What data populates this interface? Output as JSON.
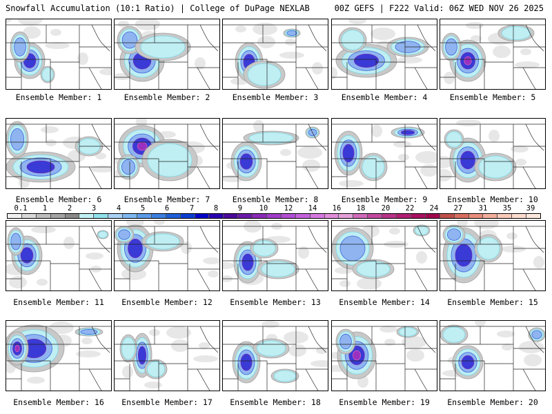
{
  "header": {
    "left": "Snowfall Accumulation (10:1 Ratio) | College of DuPage NEXLAB",
    "right": "00Z GEFS | F222 Valid: 06Z WED NOV 26 2025"
  },
  "panels": [
    {
      "label": "Ensemble Member: 1"
    },
    {
      "label": "Ensemble Member: 2"
    },
    {
      "label": "Ensemble Member: 3"
    },
    {
      "label": "Ensemble Member: 4"
    },
    {
      "label": "Ensemble Member: 5"
    },
    {
      "label": "Ensemble Member: 6"
    },
    {
      "label": "Ensemble Member: 7"
    },
    {
      "label": "Ensemble Member: 8"
    },
    {
      "label": "Ensemble Member: 9"
    },
    {
      "label": "Ensemble Member: 10"
    },
    {
      "label": "Ensemble Member: 11"
    },
    {
      "label": "Ensemble Member: 12"
    },
    {
      "label": "Ensemble Member: 13"
    },
    {
      "label": "Ensemble Member: 14"
    },
    {
      "label": "Ensemble Member: 15"
    },
    {
      "label": "Ensemble Member: 16"
    },
    {
      "label": "Ensemble Member: 17"
    },
    {
      "label": "Ensemble Member: 18"
    },
    {
      "label": "Ensemble Member: 19"
    },
    {
      "label": "Ensemble Member: 20"
    }
  ],
  "colorbar": {
    "ticks": [
      "0.1",
      "1",
      "2",
      "3",
      "4",
      "5",
      "6",
      "7",
      "8",
      "9",
      "10",
      "12",
      "14",
      "16",
      "18",
      "20",
      "22",
      "24",
      "27",
      "31",
      "35",
      "39"
    ],
    "colors": [
      "#f0f0f0",
      "#d8d8d8",
      "#bdbdbd",
      "#a3a3a3",
      "#8a8a8a",
      "#bff0f4",
      "#8fe0ea",
      "#a9d0f5",
      "#7eb6ee",
      "#5a9be8",
      "#3c7fe0",
      "#1f5fd8",
      "#0a3ed0",
      "#0000c8",
      "#2a00b0",
      "#4b0a9a",
      "#6a1aa8",
      "#8a2ab8",
      "#a03cc8",
      "#b24ed4",
      "#c462dc",
      "#d478e0",
      "#e08edc",
      "#e2a0d8",
      "#d06aba",
      "#c24a9e",
      "#b83288",
      "#b01e74",
      "#a81060",
      "#a0084e",
      "#c0504a",
      "#d86e60",
      "#e88e7c",
      "#f2ae9c",
      "#f8c8b8",
      "#fbdccf",
      "#fde8dd"
    ]
  }
}
